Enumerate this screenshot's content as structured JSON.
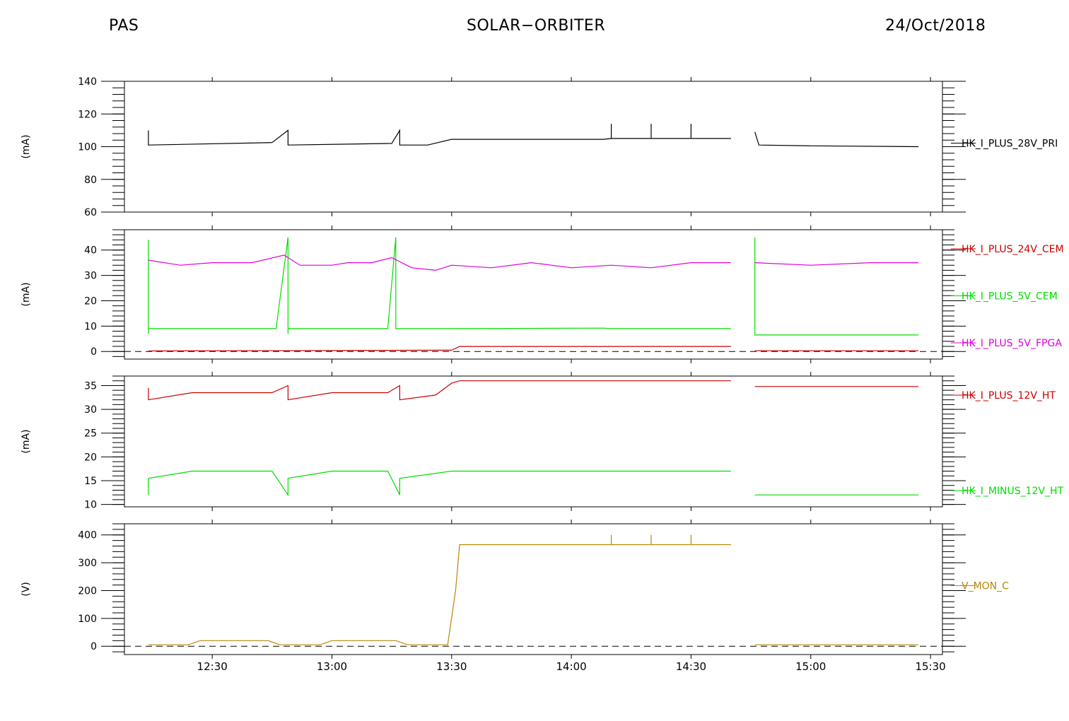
{
  "header": {
    "left": "PAS",
    "center": "SOLAR−ORBITER",
    "right": "24/Oct/2018"
  },
  "chart_data": {
    "type": "line",
    "x_unit": "time (HH:MM)",
    "x_range": [
      "12:08",
      "15:33"
    ],
    "x_ticks": [
      "12:30",
      "13:00",
      "13:30",
      "14:00",
      "14:30",
      "15:00",
      "15:30"
    ],
    "data_gap": [
      "14:40",
      "14:46"
    ],
    "panels": [
      {
        "ylabel": "(mA)",
        "ylim": [
          60,
          140
        ],
        "yticks": [
          60,
          80,
          100,
          120,
          140
        ],
        "zero_line": false,
        "series": [
          {
            "name": "HK_I_PLUS_28V_PRI",
            "color": "#000000",
            "points": [
              [
                "12:14",
                110
              ],
              [
                "12:14",
                101
              ],
              [
                "12:45",
                102.5
              ],
              [
                "12:49",
                110
              ],
              [
                "12:49",
                101
              ],
              [
                "13:15",
                102
              ],
              [
                "13:17",
                110
              ],
              [
                "13:17",
                101
              ],
              [
                "13:24",
                101
              ],
              [
                "13:30",
                104.5
              ],
              [
                "14:08",
                104.5
              ],
              [
                "14:10",
                105
              ],
              [
                "14:10",
                114
              ],
              [
                "14:10",
                105
              ],
              [
                "14:20",
                105
              ],
              [
                "14:20",
                114
              ],
              [
                "14:20",
                105
              ],
              [
                "14:30",
                105
              ],
              [
                "14:30",
                114
              ],
              [
                "14:30",
                105
              ],
              [
                "14:40",
                105
              ]
            ]
          },
          {
            "name": "HK_I_PLUS_28V_PRI",
            "color": "#000000",
            "points": [
              [
                "14:46",
                109
              ],
              [
                "14:47",
                101
              ],
              [
                "15:00",
                100.5
              ],
              [
                "15:27",
                100
              ]
            ]
          }
        ]
      },
      {
        "ylabel": "(mA)",
        "ylim": [
          -3,
          48
        ],
        "yticks": [
          0,
          10,
          20,
          30,
          40
        ],
        "zero_line": true,
        "series": [
          {
            "name": "HK_I_PLUS_24V_CEM",
            "color": "#cc0000",
            "points": [
              [
                "12:14",
                0.2
              ],
              [
                "13:30",
                0.5
              ],
              [
                "13:32",
                2
              ],
              [
                "14:40",
                2
              ]
            ]
          },
          {
            "name": "HK_I_PLUS_24V_CEM",
            "color": "#cc0000",
            "points": [
              [
                "14:46",
                0.3
              ],
              [
                "15:27",
                0.3
              ]
            ]
          },
          {
            "name": "HK_I_PLUS_5V_CEM",
            "color": "#00dd00",
            "points": [
              [
                "12:14",
                44
              ],
              [
                "12:14",
                7
              ],
              [
                "12:14",
                9
              ],
              [
                "12:46",
                9
              ],
              [
                "12:49",
                45
              ],
              [
                "12:49",
                7
              ],
              [
                "12:49",
                9
              ],
              [
                "13:14",
                9
              ],
              [
                "13:16",
                45
              ],
              [
                "13:16",
                9
              ],
              [
                "13:30",
                9
              ],
              [
                "14:08",
                9.2
              ],
              [
                "14:10",
                9
              ],
              [
                "14:40",
                9
              ]
            ]
          },
          {
            "name": "HK_I_PLUS_5V_CEM",
            "color": "#00dd00",
            "points": [
              [
                "14:46",
                45
              ],
              [
                "14:46",
                6.5
              ],
              [
                "15:27",
                6.5
              ]
            ]
          },
          {
            "name": "HK_I_PLUS_5V_FPGA",
            "color": "#dd00dd",
            "points": [
              [
                "12:14",
                36
              ],
              [
                "12:22",
                34
              ],
              [
                "12:30",
                35
              ],
              [
                "12:40",
                35
              ],
              [
                "12:48",
                38
              ],
              [
                "12:52",
                34
              ],
              [
                "13:00",
                34
              ],
              [
                "13:04",
                35
              ],
              [
                "13:10",
                35
              ],
              [
                "13:15",
                37
              ],
              [
                "13:20",
                33
              ],
              [
                "13:26",
                32
              ],
              [
                "13:30",
                34
              ],
              [
                "13:40",
                33
              ],
              [
                "13:50",
                35
              ],
              [
                "14:00",
                33
              ],
              [
                "14:10",
                34
              ],
              [
                "14:20",
                33
              ],
              [
                "14:30",
                35
              ],
              [
                "14:40",
                35
              ]
            ]
          },
          {
            "name": "HK_I_PLUS_5V_FPGA",
            "color": "#dd00dd",
            "points": [
              [
                "14:46",
                35
              ],
              [
                "15:00",
                34
              ],
              [
                "15:15",
                35
              ],
              [
                "15:27",
                35
              ]
            ]
          }
        ]
      },
      {
        "ylabel": "(mA)",
        "ylim": [
          9.5,
          37
        ],
        "yticks": [
          10,
          15,
          20,
          25,
          30,
          35
        ],
        "zero_line": false,
        "series": [
          {
            "name": "HK_I_PLUS_12V_HT",
            "color": "#cc0000",
            "points": [
              [
                "12:14",
                34.5
              ],
              [
                "12:14",
                32
              ],
              [
                "12:25",
                33.5
              ],
              [
                "12:45",
                33.5
              ],
              [
                "12:49",
                35
              ],
              [
                "12:49",
                32
              ],
              [
                "13:00",
                33.5
              ],
              [
                "13:14",
                33.5
              ],
              [
                "13:17",
                35
              ],
              [
                "13:17",
                32
              ],
              [
                "13:26",
                33
              ],
              [
                "13:30",
                35.5
              ],
              [
                "13:32",
                36
              ],
              [
                "14:40",
                36
              ]
            ]
          },
          {
            "name": "HK_I_PLUS_12V_HT",
            "color": "#cc0000",
            "points": [
              [
                "14:46",
                34.8
              ],
              [
                "15:27",
                34.8
              ]
            ]
          },
          {
            "name": "HK_I_MINUS_12V_HT",
            "color": "#00dd00",
            "points": [
              [
                "12:14",
                12
              ],
              [
                "12:14",
                15.5
              ],
              [
                "12:25",
                17
              ],
              [
                "12:45",
                17
              ],
              [
                "12:49",
                12
              ],
              [
                "12:49",
                15.5
              ],
              [
                "13:00",
                17
              ],
              [
                "13:14",
                17
              ],
              [
                "13:17",
                12
              ],
              [
                "13:17",
                15.5
              ],
              [
                "13:30",
                17
              ],
              [
                "14:40",
                17
              ]
            ]
          },
          {
            "name": "HK_I_MINUS_12V_HT",
            "color": "#00dd00",
            "points": [
              [
                "14:46",
                12
              ],
              [
                "15:27",
                12
              ]
            ]
          }
        ]
      },
      {
        "ylabel": "(V)",
        "ylim": [
          -30,
          440
        ],
        "yticks": [
          0,
          100,
          200,
          300,
          400
        ],
        "zero_line": true,
        "series": [
          {
            "name": "V_MON_C",
            "color": "#b8860b",
            "points": [
              [
                "12:14",
                5
              ],
              [
                "12:24",
                5
              ],
              [
                "12:27",
                20
              ],
              [
                "12:44",
                20
              ],
              [
                "12:47",
                5
              ],
              [
                "12:57",
                5
              ],
              [
                "13:00",
                20
              ],
              [
                "13:16",
                20
              ],
              [
                "13:19",
                5
              ],
              [
                "13:29",
                5
              ],
              [
                "13:31",
                200
              ],
              [
                "13:32",
                365
              ],
              [
                "14:10",
                365
              ],
              [
                "14:10",
                400
              ],
              [
                "14:10",
                365
              ],
              [
                "14:20",
                365
              ],
              [
                "14:20",
                400
              ],
              [
                "14:20",
                365
              ],
              [
                "14:30",
                365
              ],
              [
                "14:30",
                400
              ],
              [
                "14:30",
                365
              ],
              [
                "14:40",
                365
              ]
            ]
          },
          {
            "name": "V_MON_C",
            "color": "#b8860b",
            "points": [
              [
                "14:46",
                5
              ],
              [
                "15:27",
                5
              ]
            ]
          }
        ]
      }
    ]
  }
}
